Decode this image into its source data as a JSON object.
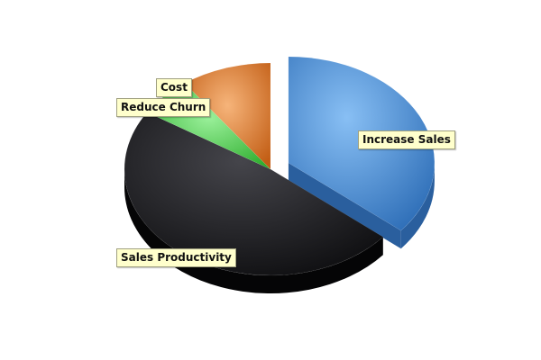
{
  "chart_data": {
    "type": "pie",
    "title": "",
    "slices": [
      {
        "label": "Increase Sales",
        "value": 36,
        "color": "#4f8fd6",
        "exploded": true
      },
      {
        "label": "Sales Productivity",
        "value": 48,
        "color": "#2b2b30",
        "exploded": false
      },
      {
        "label": "Reduce Churn",
        "value": 6,
        "color": "#55cc55",
        "exploded": false
      },
      {
        "label": "Cost",
        "value": 10,
        "color": "#e88a3a",
        "exploded": false
      }
    ],
    "legend": "none",
    "labels": "callouts"
  }
}
